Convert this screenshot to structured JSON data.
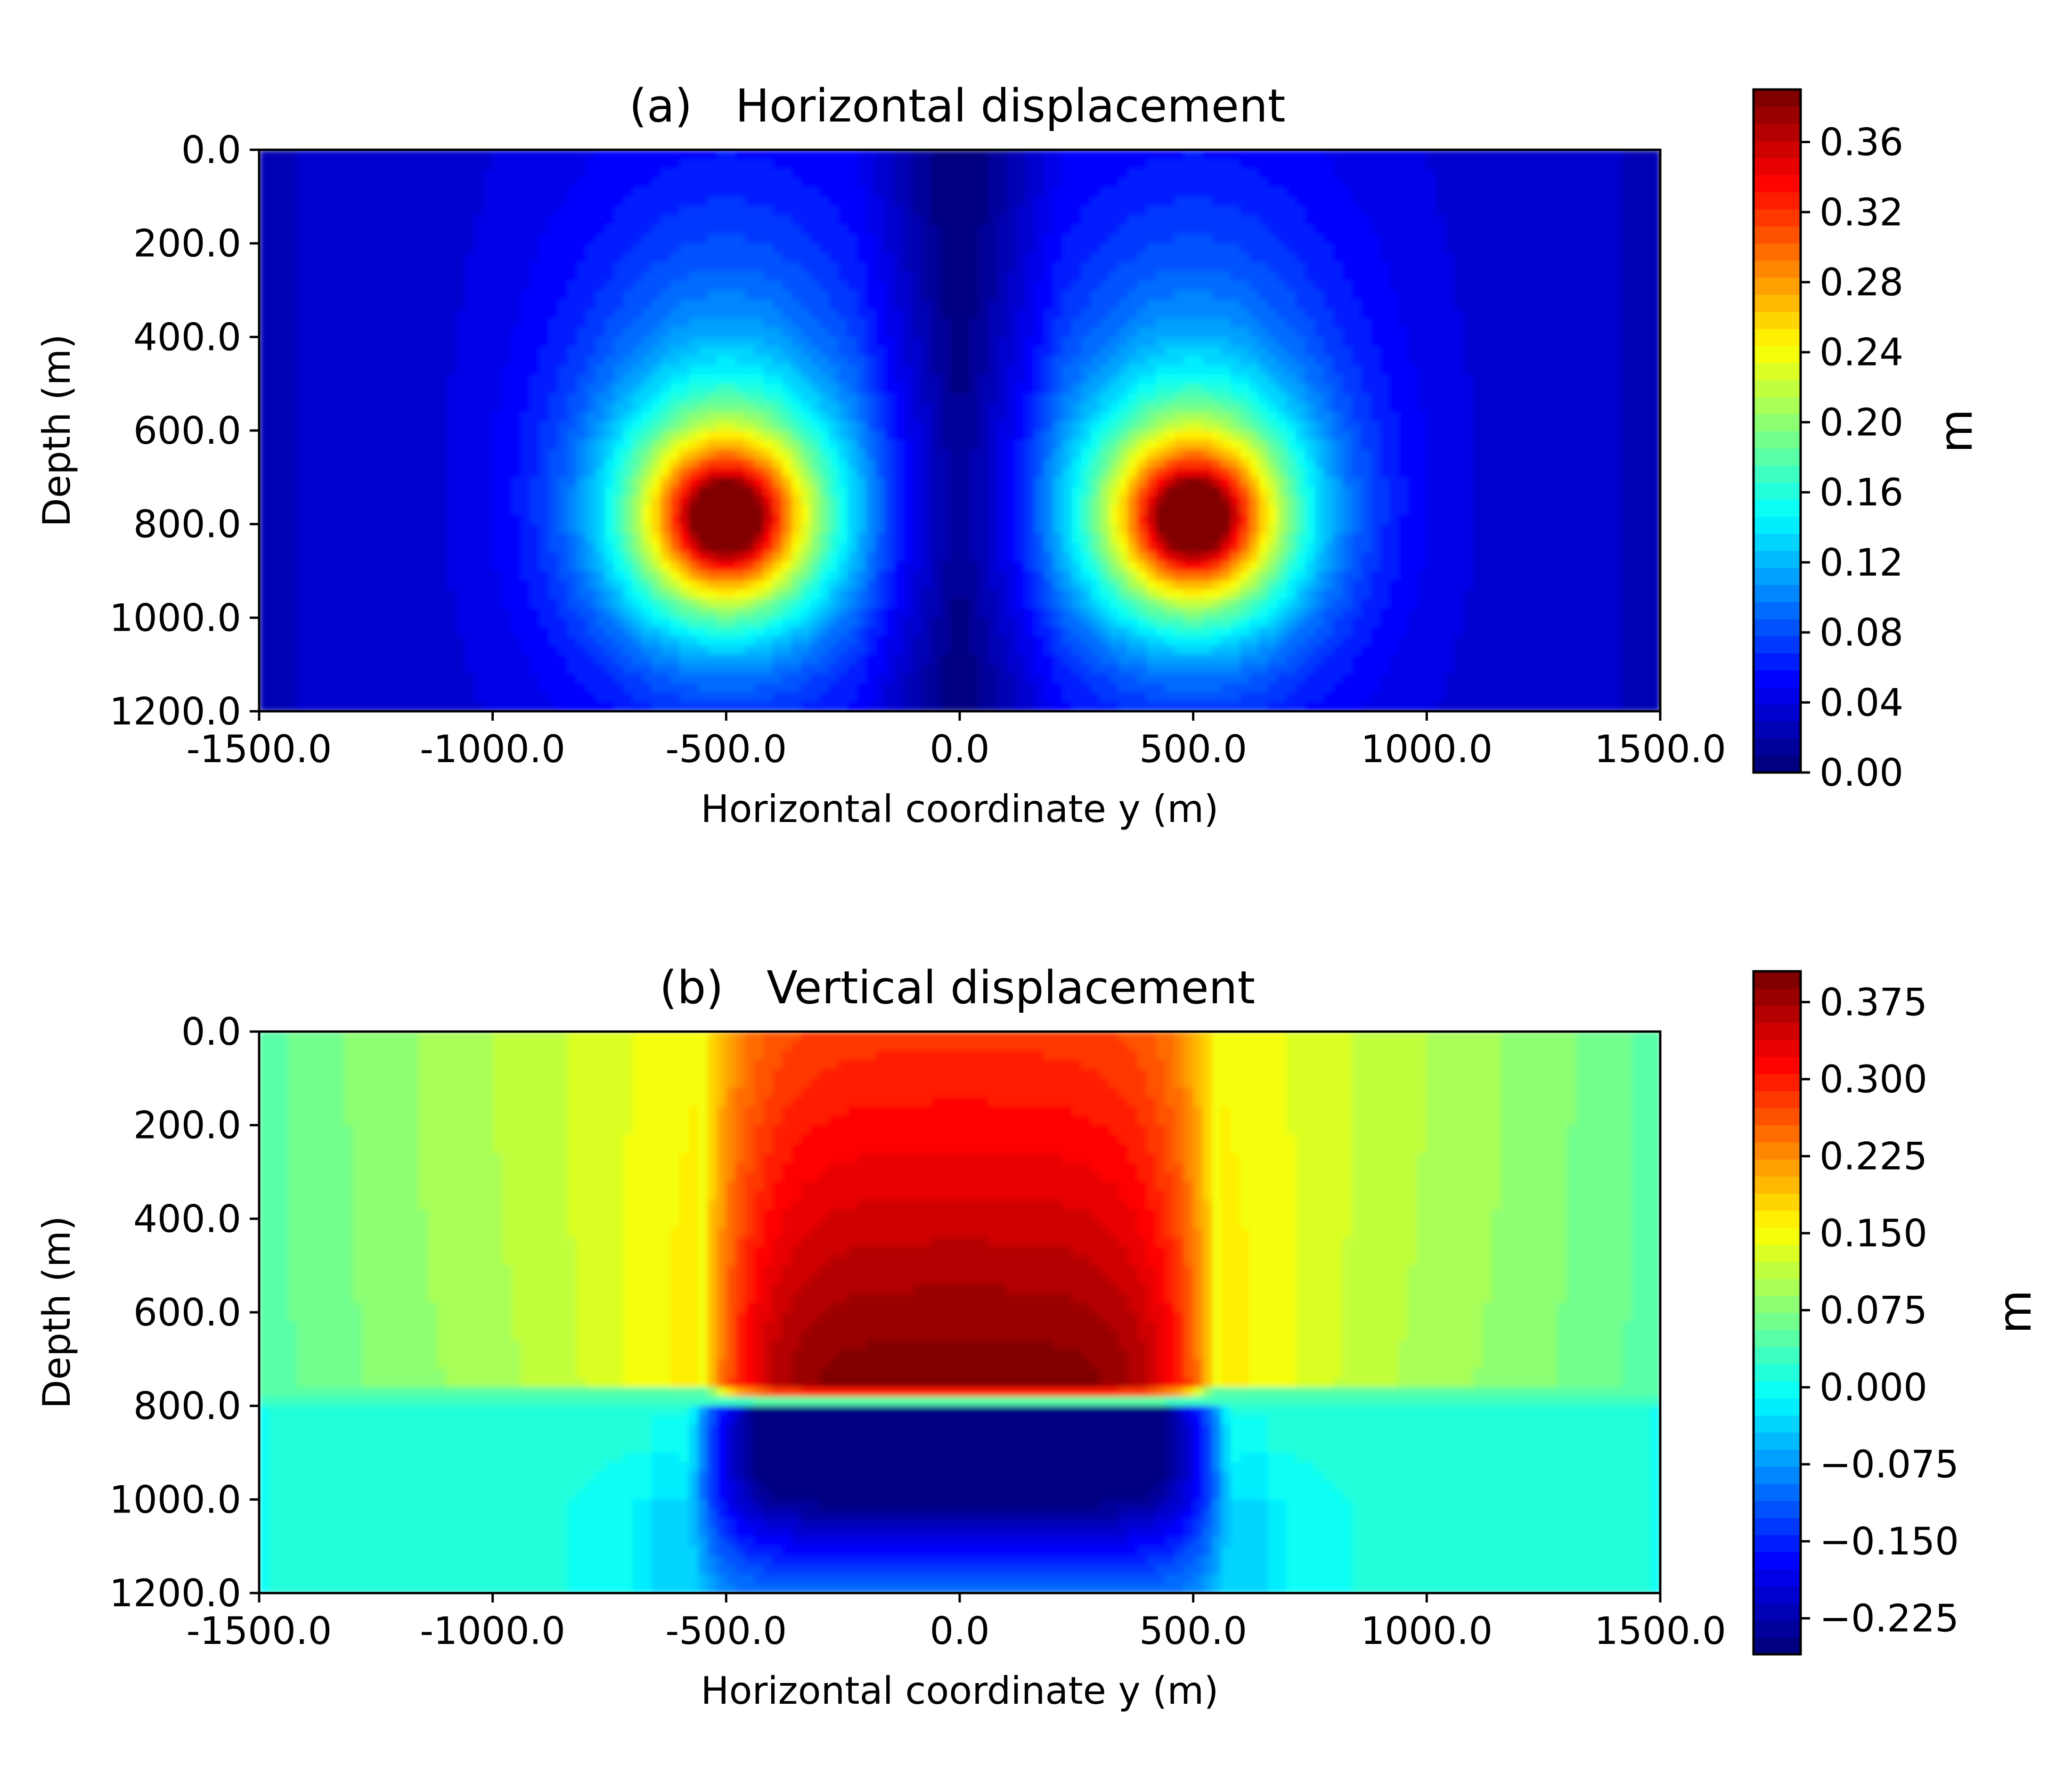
{
  "chart_data": [
    {
      "type": "heatmap",
      "panel": "(a)",
      "title": "Horizontal displacement",
      "xlabel": "Horizontal coordinate y (m)",
      "ylabel": "Depth (m)",
      "xlim": [
        -1500,
        1500
      ],
      "ylim": [
        0,
        1200
      ],
      "y_inverted": true,
      "x_ticks": [
        "-1500.0",
        "-1000.0",
        "-500.0",
        "0.0",
        "500.0",
        "1000.0",
        "1500.0"
      ],
      "x_tick_values": [
        -1500,
        -1000,
        -500,
        0,
        500,
        1000,
        1500
      ],
      "y_ticks": [
        "0.0",
        "200.0",
        "400.0",
        "600.0",
        "800.0",
        "1000.0",
        "1200.0"
      ],
      "y_tick_values": [
        0,
        200,
        400,
        600,
        800,
        1000,
        1200
      ],
      "colorbar": {
        "label": "m",
        "colormap": "jet",
        "min": 0.0,
        "max": 0.39,
        "levels": 40,
        "ticks": [
          "0.00",
          "0.04",
          "0.08",
          "0.12",
          "0.16",
          "0.20",
          "0.24",
          "0.28",
          "0.32",
          "0.36"
        ],
        "tick_values": [
          0.0,
          0.04,
          0.08,
          0.12,
          0.16,
          0.2,
          0.24,
          0.28,
          0.32,
          0.36
        ]
      },
      "features": [
        {
          "kind": "peak",
          "y": -500,
          "depth": 790,
          "value": 0.39
        },
        {
          "kind": "peak",
          "y": 500,
          "depth": 790,
          "value": 0.39
        },
        {
          "kind": "minimum",
          "y": 0,
          "depth": 0,
          "value": 0.0
        }
      ]
    },
    {
      "type": "heatmap",
      "panel": "(b)",
      "title": "Vertical displacement",
      "xlabel": "Horizontal coordinate y (m)",
      "ylabel": "Depth (m)",
      "xlim": [
        -1500,
        1500
      ],
      "ylim": [
        0,
        1200
      ],
      "y_inverted": true,
      "x_ticks": [
        "-1500.0",
        "-1000.0",
        "-500.0",
        "0.0",
        "500.0",
        "1000.0",
        "1500.0"
      ],
      "x_tick_values": [
        -1500,
        -1000,
        -500,
        0,
        500,
        1000,
        1500
      ],
      "y_ticks": [
        "0.0",
        "200.0",
        "400.0",
        "600.0",
        "800.0",
        "1000.0",
        "1200.0"
      ],
      "y_tick_values": [
        0,
        200,
        400,
        600,
        800,
        1000,
        1200
      ],
      "colorbar": {
        "label": "m",
        "colormap": "jet",
        "min": -0.26,
        "max": 0.405,
        "levels": 40,
        "ticks": [
          "−0.225",
          "−0.150",
          "−0.075",
          "0.000",
          "0.075",
          "0.150",
          "0.225",
          "0.300",
          "0.375"
        ],
        "tick_values": [
          -0.225,
          -0.15,
          -0.075,
          0.0,
          0.075,
          0.15,
          0.225,
          0.3,
          0.375
        ]
      },
      "features": [
        {
          "kind": "maximum",
          "y": 0,
          "depth": 730,
          "value": 0.39
        },
        {
          "kind": "minimum",
          "y": 0,
          "depth": 900,
          "value": -0.25
        },
        {
          "kind": "plane",
          "y_from": -500,
          "y_to": 500,
          "depth": 800
        }
      ]
    }
  ]
}
